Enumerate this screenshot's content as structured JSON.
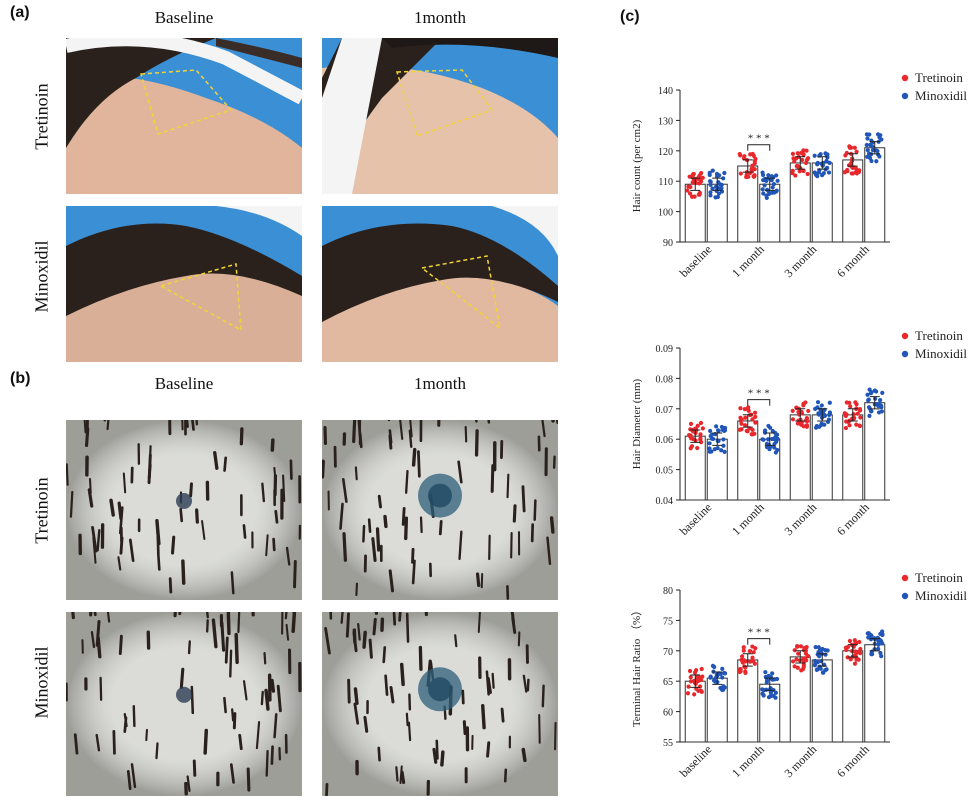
{
  "panels": {
    "a": {
      "letter": "(a)",
      "columns": [
        "Baseline",
        "1month"
      ],
      "rows": [
        "Tretinoin",
        "Minoxidil"
      ]
    },
    "b": {
      "letter": "(b)",
      "columns": [
        "Baseline",
        "1month"
      ],
      "rows": [
        "Tretinoin",
        "Minoxidil"
      ]
    },
    "c": {
      "letter": "(c)"
    }
  },
  "colors": {
    "tretinoin": "#e8282c",
    "minoxidil": "#2156b8",
    "photo_bg_blue": "#3b8fd4",
    "skin": "#e2b9a0",
    "hair": "#2a211d",
    "headband": "#f4f4f4",
    "roi_outline": "#f2d533",
    "dermoscopy_bg": "#cfd1cb"
  },
  "chart_data": [
    {
      "type": "bar",
      "ylabel": "Hair count (per cm2)",
      "ylim": [
        90,
        140
      ],
      "yticks": [
        90,
        100,
        110,
        120,
        130,
        140
      ],
      "categories": [
        "baseline",
        "1 month",
        "3 month",
        "6 month"
      ],
      "series": [
        {
          "name": "Tretinoin",
          "values": [
            109,
            115,
            116,
            117
          ]
        },
        {
          "name": "Minoxidil",
          "values": [
            109,
            109,
            116,
            121
          ]
        }
      ],
      "significance": {
        "category": "1 month",
        "label": "* * *"
      },
      "legend": "top-right"
    },
    {
      "type": "bar",
      "ylabel": "Hair Diameter (mm)",
      "ylim": [
        0.04,
        0.09
      ],
      "yticks": [
        "0.04",
        "0.05",
        "0.06",
        "0.07",
        "0.08",
        "0.09"
      ],
      "categories": [
        "baseline",
        "1 month",
        "3 month",
        "6 month"
      ],
      "series": [
        {
          "name": "Tretinoin",
          "values": [
            0.061,
            0.066,
            0.068,
            0.068
          ]
        },
        {
          "name": "Minoxidil",
          "values": [
            0.06,
            0.06,
            0.068,
            0.072
          ]
        }
      ],
      "significance": {
        "category": "1 month",
        "label": "* * *"
      },
      "legend": "top-right"
    },
    {
      "type": "bar",
      "ylabel": "Terminal Hair Ratio （%）",
      "ylim": [
        55,
        80
      ],
      "yticks": [
        55,
        60,
        65,
        70,
        75,
        80
      ],
      "categories": [
        "baseline",
        "1 month",
        "3 month",
        "6 month"
      ],
      "series": [
        {
          "name": "Tretinoin",
          "values": [
            65,
            68.5,
            69,
            70
          ]
        },
        {
          "name": "Minoxidil",
          "values": [
            65.5,
            64.5,
            68.5,
            71
          ]
        }
      ],
      "significance": {
        "category": "1 month",
        "label": "* * *"
      },
      "legend": "top-right"
    }
  ]
}
